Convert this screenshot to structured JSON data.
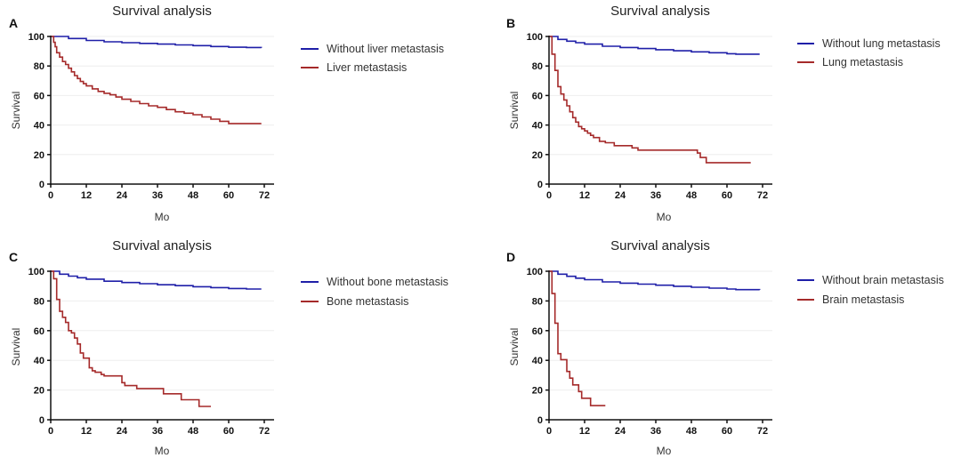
{
  "chart_data": [
    {
      "type": "line",
      "panel_label": "A",
      "title": "Survival analysis",
      "xlabel": "Mo",
      "ylabel": "Survival",
      "xlim": [
        0,
        72
      ],
      "ylim": [
        0,
        100
      ],
      "xticks": [
        0,
        12,
        24,
        36,
        48,
        60,
        72
      ],
      "yticks": [
        0,
        20,
        40,
        60,
        80,
        100
      ],
      "grid": "horizontal",
      "legend_position": "right",
      "step": true,
      "series": [
        {
          "name": "Without liver metastasis",
          "color": "#1f1fa8",
          "x": [
            0,
            6,
            12,
            18,
            24,
            30,
            36,
            42,
            48,
            54,
            60,
            66,
            71
          ],
          "y": [
            100,
            98.6,
            97.3,
            96.4,
            95.8,
            95.3,
            94.8,
            94.3,
            93.8,
            93.2,
            92.7,
            92.5,
            92.3
          ]
        },
        {
          "name": "Liver metastasis",
          "color": "#a52a2a",
          "x": [
            0,
            1,
            1.5,
            2,
            3,
            4,
            5,
            6,
            7,
            8,
            9,
            10,
            11,
            12,
            14,
            16,
            18,
            20,
            22,
            24,
            27,
            30,
            33,
            36,
            39,
            42,
            45,
            48,
            51,
            54,
            57,
            60,
            65,
            71
          ],
          "y": [
            100,
            96,
            93,
            89,
            86,
            83,
            81,
            78.5,
            76,
            73.5,
            71.5,
            69.5,
            68,
            66.5,
            64.5,
            62.8,
            61.5,
            60.5,
            59,
            57.5,
            56,
            54.5,
            53,
            52,
            50.5,
            49,
            48,
            47,
            45.5,
            44,
            42.5,
            41,
            41,
            41
          ]
        }
      ]
    },
    {
      "type": "line",
      "panel_label": "B",
      "title": "Survival analysis",
      "xlabel": "Mo",
      "ylabel": "Survival",
      "xlim": [
        0,
        72
      ],
      "ylim": [
        0,
        100
      ],
      "xticks": [
        0,
        12,
        24,
        36,
        48,
        60,
        72
      ],
      "yticks": [
        0,
        20,
        40,
        60,
        80,
        100
      ],
      "grid": "horizontal",
      "legend_position": "right",
      "step": true,
      "series": [
        {
          "name": "Without lung metastasis",
          "color": "#1f1fa8",
          "x": [
            0,
            3,
            6,
            9,
            12,
            18,
            24,
            30,
            36,
            42,
            48,
            54,
            60,
            63,
            71
          ],
          "y": [
            100,
            98,
            96.8,
            95.8,
            94.8,
            93.4,
            92.5,
            91.8,
            91,
            90.3,
            89.6,
            89,
            88.3,
            88,
            88
          ]
        },
        {
          "name": "Lung metastasis",
          "color": "#a52a2a",
          "x": [
            0,
            1,
            2,
            3,
            4,
            5,
            6,
            7,
            8,
            9,
            10,
            11,
            12,
            13,
            14,
            15,
            17,
            19,
            22,
            28,
            30,
            50,
            51,
            52,
            53,
            68
          ],
          "y": [
            100,
            88,
            77,
            66,
            61,
            57,
            53,
            49,
            45,
            42,
            39,
            37.5,
            36,
            34.5,
            33,
            31.5,
            29,
            28,
            26,
            24.5,
            23,
            21,
            18,
            18,
            14.5,
            14.5
          ]
        }
      ]
    },
    {
      "type": "line",
      "panel_label": "C",
      "title": "Survival analysis",
      "xlabel": "Mo",
      "ylabel": "Survival",
      "xlim": [
        0,
        72
      ],
      "ylim": [
        0,
        100
      ],
      "xticks": [
        0,
        12,
        24,
        36,
        48,
        60,
        72
      ],
      "yticks": [
        0,
        20,
        40,
        60,
        80,
        100
      ],
      "grid": "horizontal",
      "legend_position": "right",
      "step": true,
      "series": [
        {
          "name": "Without bone metastasis",
          "color": "#1f1fa8",
          "x": [
            0,
            3,
            6,
            9,
            12,
            18,
            24,
            30,
            36,
            42,
            48,
            54,
            60,
            66,
            71
          ],
          "y": [
            100,
            98,
            96.7,
            95.6,
            94.7,
            93.3,
            92.4,
            91.6,
            90.9,
            90.3,
            89.6,
            89,
            88.4,
            88,
            88
          ]
        },
        {
          "name": "Bone metastasis",
          "color": "#a52a2a",
          "x": [
            0,
            1,
            2,
            3,
            4,
            5,
            6,
            7,
            8,
            9,
            10,
            11,
            13,
            14,
            15,
            17,
            18,
            24,
            25,
            29,
            38,
            44,
            50,
            54
          ],
          "y": [
            100,
            95,
            81,
            73,
            69,
            65.5,
            60,
            58.5,
            55,
            51,
            45,
            41.5,
            35,
            33,
            32,
            30.5,
            29.5,
            25,
            23,
            21,
            17.5,
            13.5,
            9,
            9
          ]
        }
      ]
    },
    {
      "type": "line",
      "panel_label": "D",
      "title": "Survival analysis",
      "xlabel": "Mo",
      "ylabel": "Survival",
      "xlim": [
        0,
        72
      ],
      "ylim": [
        0,
        100
      ],
      "xticks": [
        0,
        12,
        24,
        36,
        48,
        60,
        72
      ],
      "yticks": [
        0,
        20,
        40,
        60,
        80,
        100
      ],
      "grid": "horizontal",
      "legend_position": "right",
      "step": true,
      "series": [
        {
          "name": "Without brain metastasis",
          "color": "#1f1fa8",
          "x": [
            0,
            3,
            6,
            9,
            12,
            18,
            24,
            30,
            36,
            42,
            48,
            54,
            60,
            63,
            71
          ],
          "y": [
            100,
            98,
            96.6,
            95.3,
            94.3,
            92.8,
            92,
            91.3,
            90.6,
            89.9,
            89.2,
            88.6,
            88,
            87.6,
            87.5
          ]
        },
        {
          "name": "Brain metastasis",
          "color": "#a52a2a",
          "x": [
            0,
            1,
            2,
            3,
            4,
            6,
            7,
            8,
            10,
            11,
            14,
            19
          ],
          "y": [
            100,
            85,
            65,
            44.5,
            40.5,
            32.5,
            28,
            23.5,
            19,
            14.5,
            9.5,
            9.5
          ]
        }
      ]
    }
  ]
}
